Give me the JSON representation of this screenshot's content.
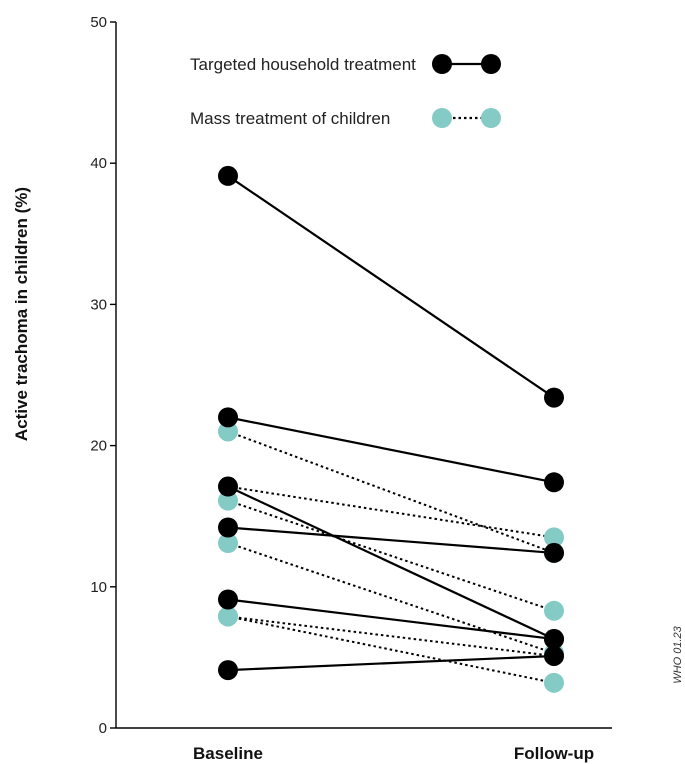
{
  "chart_data": {
    "type": "line",
    "categories": [
      "Baseline",
      "Follow-up"
    ],
    "ylabel": "Active trachoma in children (%)",
    "ylim": [
      0,
      50
    ],
    "yticks": [
      0,
      10,
      20,
      30,
      40,
      50
    ],
    "grid": false,
    "legend_position": "top-center",
    "series": [
      {
        "name": "Targeted household treatment",
        "style": "solid",
        "color": "#000000",
        "pairs": [
          [
            39.1,
            23.4
          ],
          [
            22.0,
            17.4
          ],
          [
            17.1,
            6.3
          ],
          [
            14.2,
            12.4
          ],
          [
            9.1,
            6.3
          ],
          [
            4.1,
            5.1
          ]
        ]
      },
      {
        "name": "Mass treatment of children",
        "style": "dotted",
        "color": "#84cbc6",
        "pairs": [
          [
            21.0,
            12.4
          ],
          [
            17.1,
            13.5
          ],
          [
            16.1,
            8.3
          ],
          [
            13.1,
            5.3
          ],
          [
            7.9,
            5.1
          ],
          [
            7.9,
            3.2
          ]
        ]
      }
    ],
    "credit": "WHO 01.23"
  }
}
